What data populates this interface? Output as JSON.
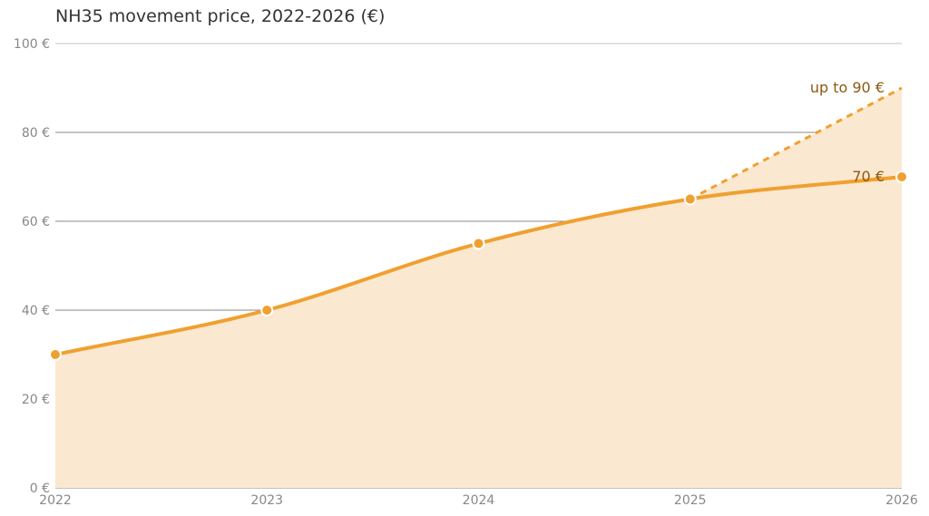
{
  "chart_data": {
    "type": "area",
    "title": "NH35 movement price, 2022-2026 (€)",
    "xlabel": "",
    "ylabel": "",
    "x": [
      2022,
      2023,
      2024,
      2025,
      2026
    ],
    "xlim": [
      2022,
      2026
    ],
    "ylim": [
      0,
      100
    ],
    "x_tick_labels": [
      "2022",
      "2023",
      "2024",
      "2025",
      "2026"
    ],
    "y_tick_values": [
      0,
      20,
      40,
      60,
      80,
      100
    ],
    "y_tick_labels": [
      "0 €",
      "20 €",
      "40 €",
      "60 €",
      "80 €",
      "100 €"
    ],
    "grid": true,
    "series": [
      {
        "values": [
          30,
          40,
          55,
          65,
          70
        ],
        "style": "solid"
      },
      {
        "x": [
          2025,
          2026
        ],
        "values": [
          65,
          90
        ],
        "style": "dashed"
      }
    ],
    "annotations": [
      {
        "text": "up to 90 €",
        "x": 2026,
        "y": 90
      },
      {
        "text": "70 €",
        "x": 2026,
        "y": 70
      }
    ],
    "colors": {
      "line": "#f0a030",
      "fill": "#fae8d0",
      "grid": "#888888",
      "label": "#8a5a14"
    }
  }
}
